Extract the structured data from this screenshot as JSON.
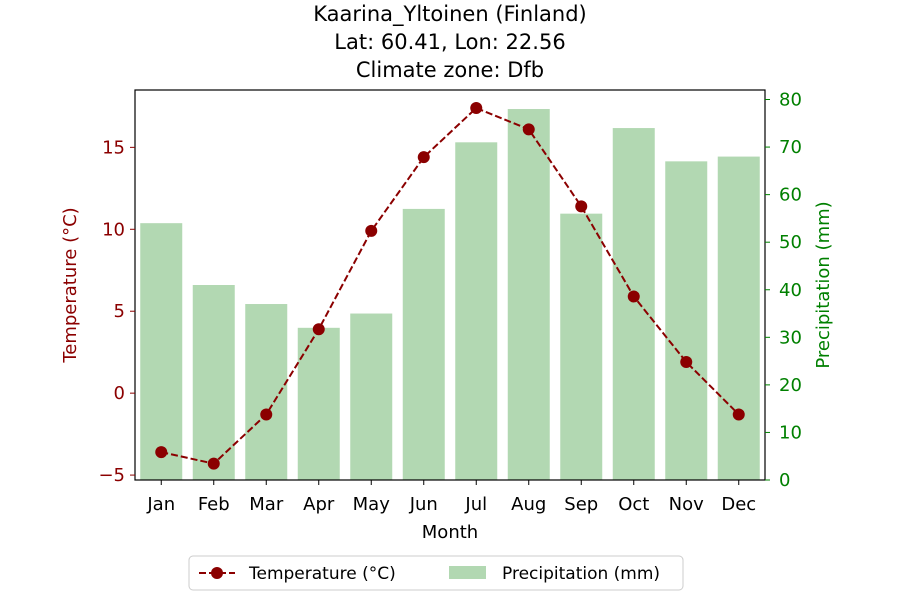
{
  "chart_data": {
    "type": "bar+line",
    "title_lines": [
      "Kaarina_Yltoinen (Finland)",
      "Lat: 60.41, Lon: 22.56",
      "Climate zone: Dfb"
    ],
    "xlabel": "Month",
    "ylabel_left": "Temperature (°C)",
    "ylabel_right": "Precipitation (mm)",
    "categories": [
      "Jan",
      "Feb",
      "Mar",
      "Apr",
      "May",
      "Jun",
      "Jul",
      "Aug",
      "Sep",
      "Oct",
      "Nov",
      "Dec"
    ],
    "temperature": {
      "name": "Temperature (°C)",
      "values": [
        -3.6,
        -4.3,
        -1.3,
        3.9,
        9.9,
        14.4,
        17.4,
        16.1,
        11.4,
        5.9,
        1.9,
        -1.3
      ],
      "ylim": [
        -5.3,
        18.5
      ],
      "ticks": [
        -5,
        0,
        5,
        10,
        15
      ],
      "tick_labels": [
        "−5",
        "0",
        "5",
        "10",
        "15"
      ],
      "color": "#8b0000"
    },
    "precipitation": {
      "name": "Precipitation (mm)",
      "values": [
        54,
        41,
        37,
        32,
        35,
        57,
        71,
        78,
        56,
        74,
        67,
        68
      ],
      "ylim": [
        0,
        82
      ],
      "ticks": [
        0,
        10,
        20,
        30,
        40,
        50,
        60,
        70,
        80
      ],
      "tick_labels": [
        "0",
        "10",
        "20",
        "30",
        "40",
        "50",
        "60",
        "70",
        "80"
      ],
      "color": "#b2d8b2"
    },
    "axis_colors": {
      "left": "#8b0000",
      "right": "#008000"
    },
    "legend": {
      "placement": "bottom-center",
      "ncol": 2
    },
    "grid": false
  }
}
